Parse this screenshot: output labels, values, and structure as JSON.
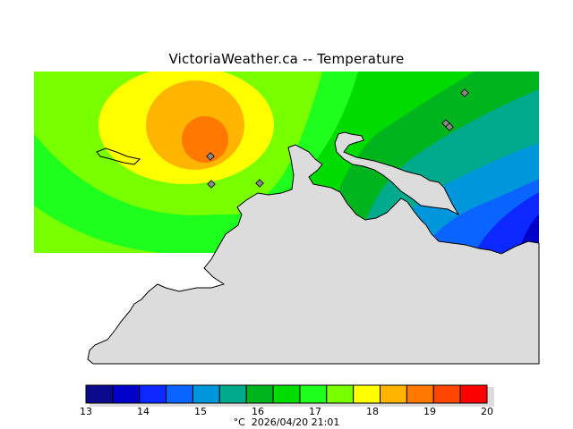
{
  "title": "VictoriaWeather.ca  --  Temperature",
  "colors": {
    "land": "#dcdcdc",
    "coast": "#000000",
    "station_marker": "#888888"
  },
  "legend": {
    "unit": "°C",
    "timestamp": "2026/04/20 21:01",
    "ticks": [
      "13",
      "14",
      "15",
      "16",
      "17",
      "18",
      "19",
      "20"
    ],
    "bins": [
      {
        "from": 13.0,
        "to": 13.5,
        "color": "#0a0a8c"
      },
      {
        "from": 13.5,
        "to": 14.0,
        "color": "#0000c8"
      },
      {
        "from": 14.0,
        "to": 14.5,
        "color": "#0a28ff"
      },
      {
        "from": 14.5,
        "to": 15.0,
        "color": "#0a64ff"
      },
      {
        "from": 15.0,
        "to": 15.5,
        "color": "#0096dc"
      },
      {
        "from": 15.5,
        "to": 16.0,
        "color": "#00aa8c"
      },
      {
        "from": 16.0,
        "to": 16.5,
        "color": "#00b41e"
      },
      {
        "from": 16.5,
        "to": 17.0,
        "color": "#00dc00"
      },
      {
        "from": 17.0,
        "to": 17.5,
        "color": "#1eff1e"
      },
      {
        "from": 17.5,
        "to": 18.0,
        "color": "#78ff00"
      },
      {
        "from": 18.0,
        "to": 18.5,
        "color": "#ffff00"
      },
      {
        "from": 18.5,
        "to": 19.0,
        "color": "#ffb400"
      },
      {
        "from": 19.0,
        "to": 19.5,
        "color": "#ff7800"
      },
      {
        "from": 19.5,
        "to": 20.0,
        "color": "#ff4600"
      },
      {
        "from": 20.0,
        "to": 20.5,
        "color": "#ff0000"
      }
    ]
  }
}
